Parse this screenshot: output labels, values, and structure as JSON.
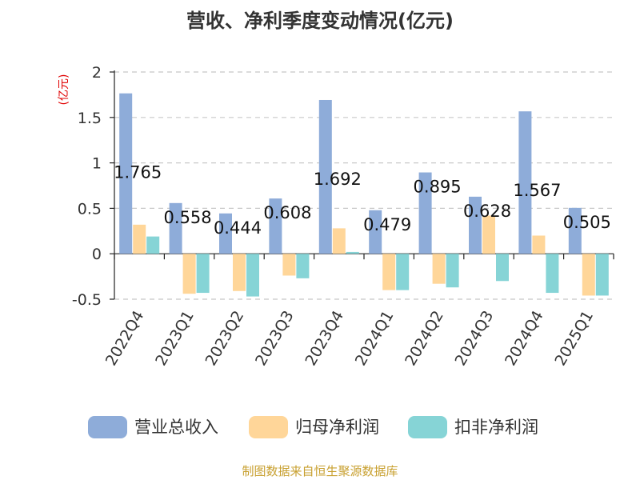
{
  "chart_data": {
    "type": "bar",
    "title": "营收、净利季度变动情况(亿元)",
    "unit_label": "(亿元)",
    "categories": [
      "2022Q4",
      "2023Q1",
      "2023Q2",
      "2023Q3",
      "2023Q4",
      "2024Q1",
      "2024Q2",
      "2024Q3",
      "2024Q4",
      "2025Q1"
    ],
    "series": [
      {
        "name": "营业总收入",
        "color": "#8eacd9",
        "values": [
          1.765,
          0.558,
          0.444,
          0.608,
          1.692,
          0.479,
          0.895,
          0.628,
          1.567,
          0.505
        ]
      },
      {
        "name": "归母净利润",
        "color": "#ffd699",
        "values": [
          0.32,
          -0.44,
          -0.41,
          -0.24,
          0.28,
          -0.4,
          -0.33,
          0.42,
          0.2,
          -0.46
        ]
      },
      {
        "name": "扣非净利润",
        "color": "#86d4d6",
        "values": [
          0.19,
          -0.43,
          -0.47,
          -0.27,
          0.02,
          -0.4,
          -0.37,
          -0.3,
          -0.43,
          -0.46
        ]
      }
    ],
    "data_labels": [
      "1.765",
      "0.558",
      "0.444",
      "0.608",
      "1.692",
      "0.479",
      "0.895",
      "0.628",
      "1.567",
      "0.505"
    ],
    "y_ticks": [
      "2",
      "1.5",
      "1",
      "0.5",
      "0",
      "-0.5"
    ],
    "ylim": [
      -0.5,
      2
    ],
    "grid": true,
    "legend_position": "bottom"
  },
  "source_text": "制图数据来自恒生聚源数据库"
}
